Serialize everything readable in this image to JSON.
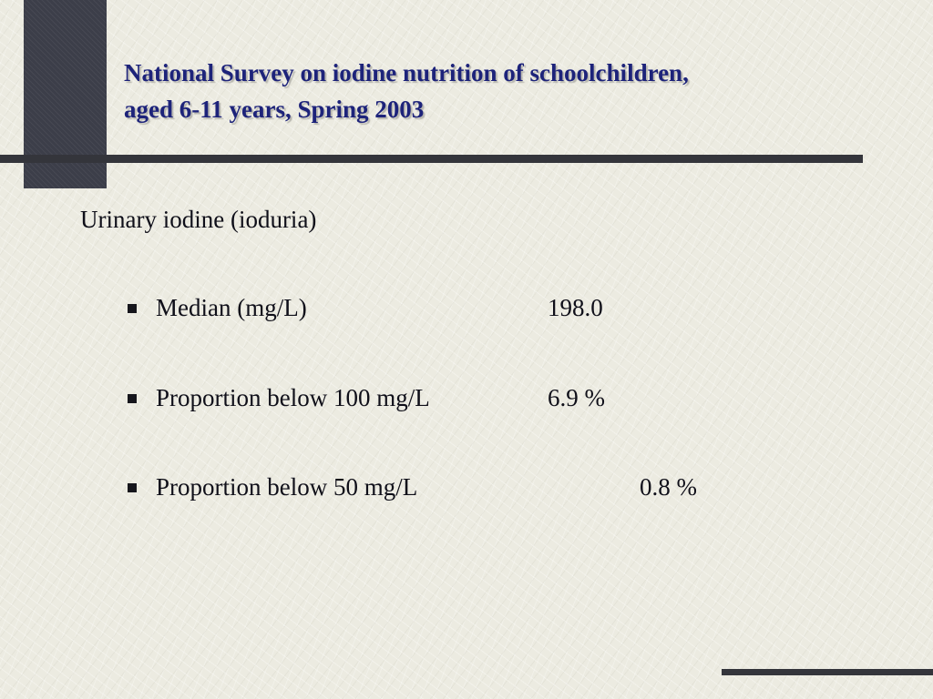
{
  "slide": {
    "title_line_1": "National Survey on iodine nutrition of schoolchildren,",
    "title_line_2": "aged 6-11 years, Spring 2003",
    "subheading": "Urinary iodine (ioduria)",
    "items": [
      {
        "label": "Median (mg/L)",
        "value": "198.0"
      },
      {
        "label": "Proportion below 100 mg/L",
        "value": "6.9 %"
      },
      {
        "label": "Proportion below 50 mg/L",
        "value": "0.8 %"
      }
    ]
  },
  "colors": {
    "background": "#ecebe1",
    "title": "#1d237a",
    "accent_block": "#3c3e49",
    "rule": "#34353b",
    "text": "#0f0f19"
  }
}
